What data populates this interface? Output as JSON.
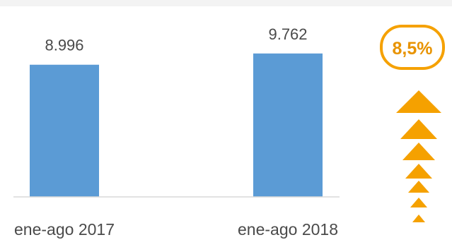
{
  "chart_data": {
    "type": "bar",
    "categories": [
      "ene-ago 2017",
      "ene-ago 2018"
    ],
    "values": [
      8996,
      9762
    ],
    "value_labels": [
      "8.996",
      "9.762"
    ],
    "title": "",
    "xlabel": "",
    "ylabel": "",
    "ylim": [
      0,
      11000
    ],
    "grid": false,
    "legend": "none",
    "bar_color": "#5b9bd5"
  },
  "growth": {
    "label": "8,5%",
    "color": "#f5a100",
    "text_color": "#e89300",
    "icon": "stacked-up-arrows-icon"
  }
}
